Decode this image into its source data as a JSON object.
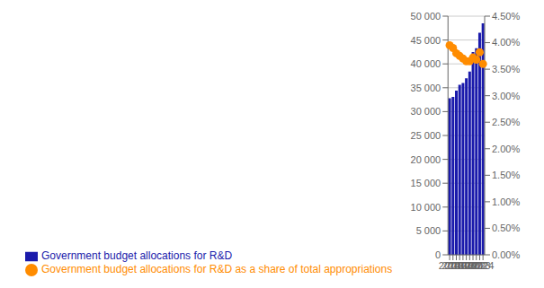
{
  "chart_data": {
    "type": "bar",
    "categories": [
      2014,
      2015,
      2016,
      2017,
      2018,
      2019,
      2020,
      2021,
      2022,
      2023,
      2024
    ],
    "series": [
      {
        "name": "Government budget allocations for R&D",
        "type": "bar",
        "color": "#1a1aab",
        "values": [
          32800,
          33100,
          34400,
          35600,
          36000,
          37000,
          38400,
          42500,
          43300,
          46500,
          48500
        ]
      },
      {
        "name": "Government budget allocations for R&D as a share of total appropriations",
        "type": "scatter",
        "axis": "y2",
        "color": "#ff8c00",
        "marker": "circle",
        "values": [
          3.95,
          3.9,
          3.8,
          3.75,
          3.7,
          3.65,
          3.65,
          3.72,
          3.68,
          3.82,
          3.6
        ]
      }
    ],
    "ylim": [
      0,
      50000
    ],
    "yticks": [
      0,
      {
        "value": 5000,
        "label": "5 000"
      },
      {
        "value": 10000,
        "label": "10 000"
      },
      {
        "value": 15000,
        "label": "15 000"
      },
      {
        "value": 20000,
        "label": "20 000"
      },
      {
        "value": 25000,
        "label": "25 000"
      },
      {
        "value": 30000,
        "label": "30 000"
      },
      {
        "value": 35000,
        "label": "35 000"
      },
      {
        "value": 40000,
        "label": "40 000"
      },
      {
        "value": 45000,
        "label": "45 000"
      },
      {
        "value": 50000,
        "label": "50 000"
      }
    ],
    "y2lim": [
      0.0,
      4.5
    ],
    "y2ticks": [
      {
        "value": 0.0,
        "label": "0.00%"
      },
      {
        "value": 0.5,
        "label": "0.50%"
      },
      {
        "value": 1.0,
        "label": "1.00%"
      },
      {
        "value": 1.5,
        "label": "1.50%"
      },
      {
        "value": 2.0,
        "label": "2.00%"
      },
      {
        "value": 2.5,
        "label": "2.50%"
      },
      {
        "value": 3.0,
        "label": "3.00%"
      },
      {
        "value": 3.5,
        "label": "3.50%"
      },
      {
        "value": 4.0,
        "label": "4.00%"
      },
      {
        "value": 4.5,
        "label": "4.50%"
      }
    ],
    "grid": true,
    "legend": "bottom"
  }
}
